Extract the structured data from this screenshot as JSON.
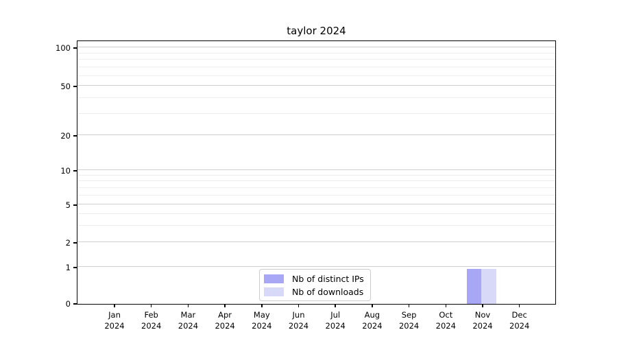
{
  "chart_data": {
    "type": "bar",
    "title": "taylor 2024",
    "categories": [
      "Jan 2024",
      "Feb 2024",
      "Mar 2024",
      "Apr 2024",
      "May 2024",
      "Jun 2024",
      "Jul 2024",
      "Aug 2024",
      "Sep 2024",
      "Oct 2024",
      "Nov 2024",
      "Dec 2024"
    ],
    "series": [
      {
        "name": "Nb of distinct IPs",
        "color": "#a7a7f5",
        "values": [
          0,
          0,
          0,
          0,
          0,
          0,
          0,
          0,
          0,
          0,
          1,
          0
        ]
      },
      {
        "name": "Nb of downloads",
        "color": "#d8d8f8",
        "values": [
          0,
          0,
          0,
          0,
          0,
          0,
          0,
          0,
          0,
          0,
          1,
          0
        ]
      }
    ],
    "xlabel": "",
    "ylabel": "",
    "y_ticks": [
      0,
      1,
      2,
      5,
      10,
      20,
      50,
      100
    ],
    "y_minor_ticks": [
      3,
      4,
      6,
      7,
      8,
      9,
      30,
      40,
      60,
      70,
      80,
      90
    ],
    "ylim": [
      0,
      110
    ],
    "y_scale": "symlog-like",
    "grid": "horizontal, major and minor",
    "legend_position": "lower center",
    "colors": {
      "major_grid": "#cfcfcf",
      "minor_grid": "#ededed",
      "axis": "#000000",
      "background": "#ffffff"
    }
  }
}
